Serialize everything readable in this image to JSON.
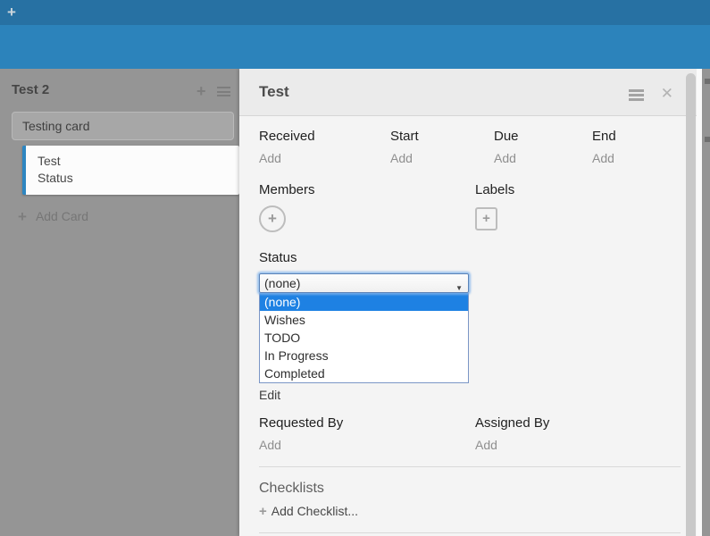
{
  "topbar": {
    "add_icon": "+"
  },
  "board": {
    "list": {
      "title": "Test 2",
      "cards": [
        {
          "title": "Testing card"
        },
        {
          "title": "Test",
          "subtitle": "Status"
        }
      ],
      "add_card_label": "Add Card"
    }
  },
  "panel": {
    "title": "Test",
    "close_icon": "✕",
    "dates": [
      {
        "label": "Received",
        "action": "Add"
      },
      {
        "label": "Start",
        "action": "Add"
      },
      {
        "label": "Due",
        "action": "Add"
      },
      {
        "label": "End",
        "action": "Add"
      }
    ],
    "members": {
      "label": "Members",
      "add_icon": "+"
    },
    "labels": {
      "label": "Labels",
      "add_icon": "+"
    },
    "status": {
      "label": "Status",
      "selected": "(none)",
      "arrow_icon": "▼",
      "options": [
        "(none)",
        "Wishes",
        "TODO",
        "In Progress",
        "Completed"
      ],
      "edit_label": "Edit"
    },
    "requested_by": {
      "label": "Requested By",
      "action": "Add"
    },
    "assigned_by": {
      "label": "Assigned By",
      "action": "Add"
    },
    "checklists": {
      "label": "Checklists",
      "add_icon": "+",
      "add_label": "Add Checklist..."
    }
  },
  "colors": {
    "topbar": "#2771a3",
    "subbar": "#2c83bb",
    "board_bg": "#959595",
    "panel_bg": "#f4f4f4",
    "card_accent": "#2e86c1",
    "option_highlight": "#1e81e3"
  }
}
